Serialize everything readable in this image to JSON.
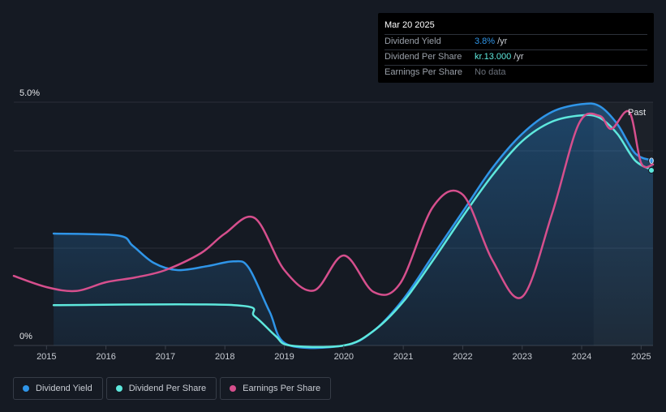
{
  "tooltip": {
    "date": "Mar 20 2025",
    "rows": [
      {
        "label": "Dividend Yield",
        "value": "3.8%",
        "unit": "/yr"
      },
      {
        "label": "Dividend Per Share",
        "value": "kr.13.000",
        "unit": "/yr"
      },
      {
        "label": "Earnings Per Share",
        "value": "No data",
        "unit": ""
      }
    ]
  },
  "past_label": "Past",
  "edge_marker": "0",
  "legend": [
    {
      "label": "Dividend Yield",
      "color": "#2f95e8"
    },
    {
      "label": "Dividend Per Share",
      "color": "#5ee8dd"
    },
    {
      "label": "Earnings Per Share",
      "color": "#d64f8d"
    }
  ],
  "chart_data": {
    "type": "line",
    "title": "",
    "xlabel": "",
    "ylabel": "",
    "x_ticks": [
      "2015",
      "2016",
      "2017",
      "2018",
      "2019",
      "2020",
      "2021",
      "2022",
      "2023",
      "2024",
      "2025"
    ],
    "y_ticks": [
      "0%",
      "5.0%"
    ],
    "ylim": [
      0,
      5.0
    ],
    "xlim": [
      2014.45,
      2025.2
    ],
    "grid": true,
    "legend_position": "bottom-left",
    "series": [
      {
        "name": "Dividend Yield",
        "color": "#2f95e8",
        "filled": true,
        "points": [
          [
            2015.12,
            2.3
          ],
          [
            2016.2,
            2.26
          ],
          [
            2016.45,
            2.05
          ],
          [
            2016.8,
            1.7
          ],
          [
            2017.2,
            1.55
          ],
          [
            2017.7,
            1.63
          ],
          [
            2018.15,
            1.73
          ],
          [
            2018.4,
            1.6
          ],
          [
            2018.75,
            0.7
          ],
          [
            2019.05,
            0.02
          ],
          [
            2020.0,
            0.0
          ],
          [
            2020.5,
            0.3
          ],
          [
            2021.0,
            0.95
          ],
          [
            2021.5,
            1.85
          ],
          [
            2022.0,
            2.75
          ],
          [
            2022.5,
            3.65
          ],
          [
            2023.0,
            4.35
          ],
          [
            2023.5,
            4.8
          ],
          [
            2024.0,
            4.96
          ],
          [
            2024.3,
            4.92
          ],
          [
            2024.6,
            4.55
          ],
          [
            2024.9,
            3.95
          ],
          [
            2025.2,
            3.8
          ]
        ]
      },
      {
        "name": "Dividend Per Share",
        "color": "#5ee8dd",
        "filled": false,
        "points": [
          [
            2015.12,
            0.83
          ],
          [
            2018.15,
            0.83
          ],
          [
            2018.5,
            0.6
          ],
          [
            2018.85,
            0.2
          ],
          [
            2019.1,
            0.0
          ],
          [
            2020.0,
            0.0
          ],
          [
            2020.5,
            0.3
          ],
          [
            2021.0,
            0.9
          ],
          [
            2021.5,
            1.75
          ],
          [
            2022.0,
            2.65
          ],
          [
            2022.5,
            3.5
          ],
          [
            2023.0,
            4.2
          ],
          [
            2023.5,
            4.6
          ],
          [
            2024.0,
            4.73
          ],
          [
            2024.3,
            4.68
          ],
          [
            2024.6,
            4.35
          ],
          [
            2024.9,
            3.8
          ],
          [
            2025.2,
            3.6
          ]
        ]
      },
      {
        "name": "Earnings Per Share",
        "color": "#d64f8d",
        "filled": false,
        "points": [
          [
            2014.45,
            1.43
          ],
          [
            2015.0,
            1.2
          ],
          [
            2015.5,
            1.12
          ],
          [
            2016.0,
            1.3
          ],
          [
            2016.5,
            1.4
          ],
          [
            2017.0,
            1.55
          ],
          [
            2017.6,
            1.9
          ],
          [
            2018.0,
            2.3
          ],
          [
            2018.5,
            2.62
          ],
          [
            2019.0,
            1.55
          ],
          [
            2019.5,
            1.13
          ],
          [
            2020.0,
            1.85
          ],
          [
            2020.5,
            1.1
          ],
          [
            2020.95,
            1.28
          ],
          [
            2021.5,
            2.85
          ],
          [
            2022.0,
            3.1
          ],
          [
            2022.5,
            1.75
          ],
          [
            2023.0,
            1.0
          ],
          [
            2023.5,
            2.7
          ],
          [
            2023.95,
            4.55
          ],
          [
            2024.3,
            4.72
          ],
          [
            2024.5,
            4.45
          ],
          [
            2024.8,
            4.8
          ],
          [
            2025.0,
            3.75
          ],
          [
            2025.2,
            3.72
          ]
        ]
      }
    ]
  }
}
